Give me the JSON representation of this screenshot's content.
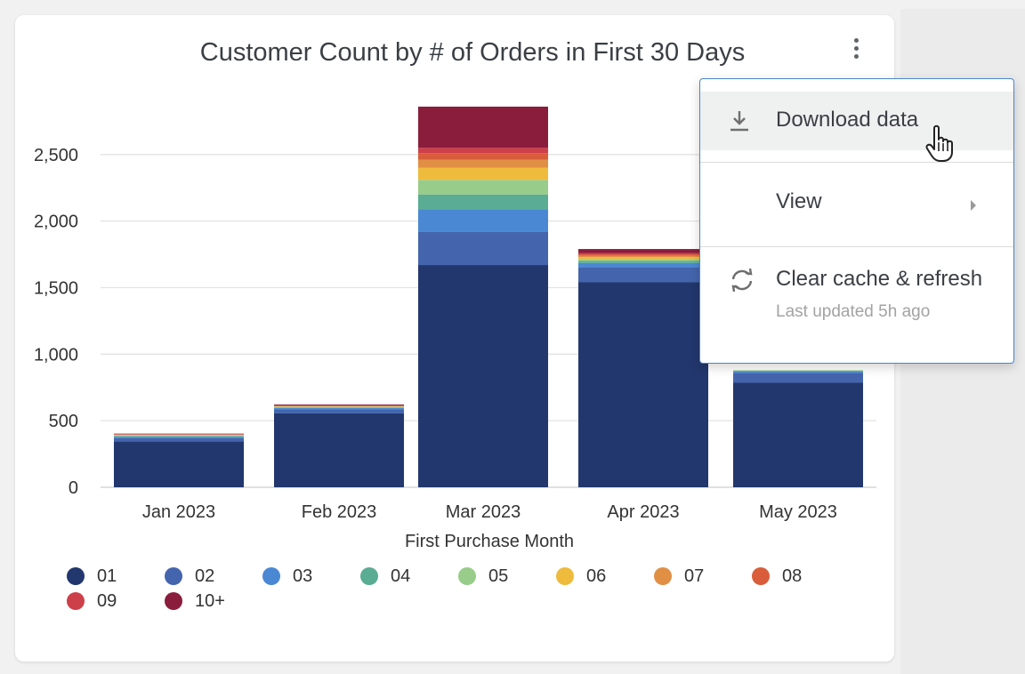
{
  "chart_data": {
    "type": "bar",
    "stacked": true,
    "title": "Customer Count by # of Orders in First 30 Days",
    "xlabel": "First Purchase Month",
    "ylabel": "",
    "ylim": [
      0,
      2870
    ],
    "yticks": [
      0,
      500,
      1000,
      1500,
      2000,
      2500
    ],
    "ytick_labels": [
      "0",
      "500",
      "1,000",
      "1,500",
      "2,000",
      "2,500"
    ],
    "categories": [
      "Jan 2023",
      "Feb 2023",
      "Mar 2023",
      "Apr 2023",
      "May 2023"
    ],
    "legend_position": "bottom",
    "series": [
      {
        "name": "01",
        "color": "#22376d",
        "values": [
          345,
          555,
          1670,
          1540,
          785
        ]
      },
      {
        "name": "02",
        "color": "#4465ad",
        "values": [
          25,
          30,
          250,
          115,
          75
        ]
      },
      {
        "name": "03",
        "color": "#4a88d4",
        "values": [
          10,
          10,
          170,
          30,
          10
        ]
      },
      {
        "name": "04",
        "color": "#5aac93",
        "values": [
          5,
          5,
          110,
          15,
          6
        ]
      },
      {
        "name": "05",
        "color": "#98cc8a",
        "values": [
          5,
          5,
          110,
          15,
          4
        ]
      },
      {
        "name": "06",
        "color": "#efbb3c",
        "values": [
          3,
          3,
          90,
          15,
          0
        ]
      },
      {
        "name": "07",
        "color": "#e18f45",
        "values": [
          2,
          2,
          60,
          10,
          0
        ]
      },
      {
        "name": "08",
        "color": "#d95d3b",
        "values": [
          2,
          2,
          50,
          10,
          0
        ]
      },
      {
        "name": "09",
        "color": "#cd3f49",
        "values": [
          2,
          2,
          40,
          10,
          0
        ]
      },
      {
        "name": "10+",
        "color": "#8b1d3c",
        "values": [
          4,
          8,
          310,
          30,
          0
        ]
      }
    ],
    "grid": true
  },
  "menu": {
    "items": [
      {
        "label": "Download data",
        "icon": "download-icon"
      },
      {
        "label": "View",
        "icon": "chevron-right-icon"
      },
      {
        "label": "Clear cache & refresh",
        "icon": "refresh-icon",
        "sublabel": "Last updated 5h ago"
      }
    ]
  },
  "kebab_icon": "more-vertical-icon"
}
